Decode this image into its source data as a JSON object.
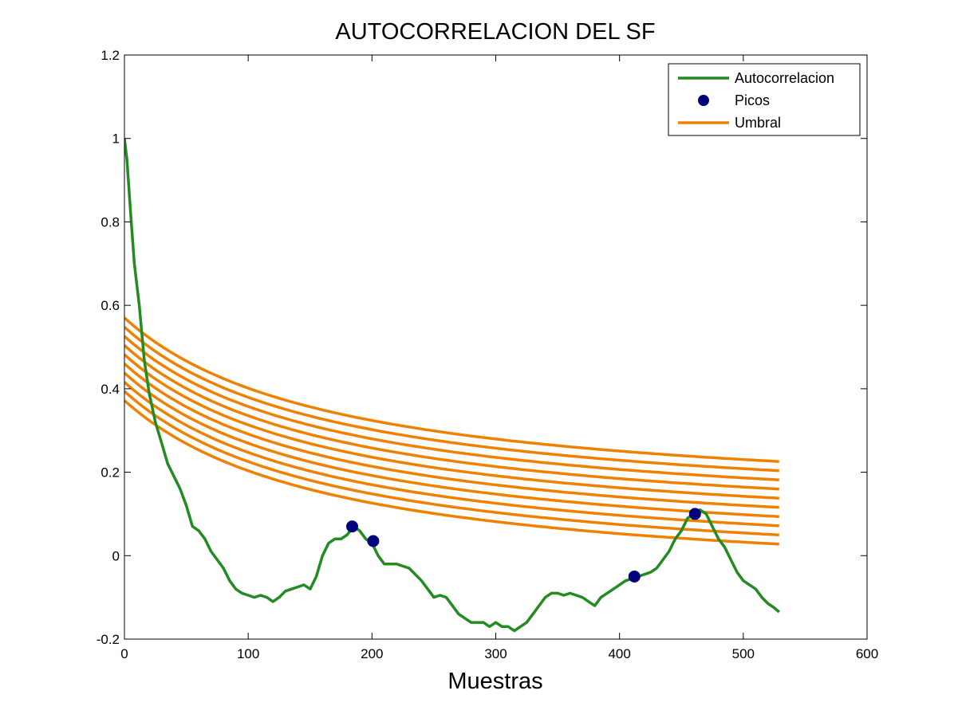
{
  "chart_data": {
    "type": "line",
    "title": "AUTOCORRELACION DEL SF",
    "xlabel": "Muestras",
    "ylabel": "",
    "xlim": [
      0,
      600
    ],
    "ylim": [
      -0.2,
      1.2
    ],
    "xticks": [
      0,
      100,
      200,
      300,
      400,
      500,
      600
    ],
    "yticks": [
      -0.2,
      0,
      0.2,
      0.4,
      0.6,
      0.8,
      1,
      1.2
    ],
    "xtick_labels": [
      "0",
      "100",
      "200",
      "300",
      "400",
      "500",
      "600"
    ],
    "ytick_labels": [
      "-0.2",
      "0",
      "0.2",
      "0.4",
      "0.6",
      "0.8",
      "1",
      "1.2"
    ],
    "grid": false,
    "legend_position": "top-right",
    "legend": [
      {
        "label": "Autocorrelacion",
        "kind": "line",
        "color": "#228B22"
      },
      {
        "label": "Picos",
        "kind": "marker",
        "color": "#00007F"
      },
      {
        "label": "Umbral",
        "kind": "line",
        "color": "#F08000"
      }
    ],
    "series": [
      {
        "name": "Autocorrelacion",
        "color": "#228B22",
        "x": [
          0,
          2,
          5,
          8,
          12,
          16,
          20,
          25,
          30,
          35,
          40,
          45,
          50,
          55,
          60,
          65,
          70,
          75,
          80,
          85,
          90,
          95,
          100,
          105,
          110,
          115,
          120,
          125,
          130,
          135,
          140,
          145,
          150,
          155,
          160,
          165,
          170,
          175,
          180,
          185,
          190,
          195,
          200,
          205,
          210,
          215,
          220,
          225,
          230,
          240,
          250,
          255,
          260,
          265,
          270,
          280,
          290,
          295,
          300,
          305,
          310,
          315,
          320,
          325,
          330,
          335,
          340,
          345,
          350,
          355,
          360,
          365,
          370,
          375,
          380,
          385,
          390,
          395,
          400,
          405,
          410,
          415,
          420,
          425,
          430,
          435,
          440,
          445,
          450,
          455,
          460,
          465,
          470,
          475,
          480,
          485,
          490,
          495,
          500,
          505,
          510,
          515,
          520,
          525,
          529
        ],
        "y": [
          1.0,
          0.95,
          0.82,
          0.7,
          0.6,
          0.47,
          0.39,
          0.32,
          0.27,
          0.22,
          0.19,
          0.16,
          0.12,
          0.07,
          0.06,
          0.04,
          0.01,
          -0.01,
          -0.03,
          -0.06,
          -0.08,
          -0.09,
          -0.095,
          -0.1,
          -0.095,
          -0.1,
          -0.11,
          -0.1,
          -0.085,
          -0.08,
          -0.075,
          -0.07,
          -0.08,
          -0.05,
          0.0,
          0.03,
          0.04,
          0.04,
          0.05,
          0.07,
          0.06,
          0.04,
          0.03,
          0.0,
          -0.02,
          -0.02,
          -0.02,
          -0.025,
          -0.03,
          -0.06,
          -0.1,
          -0.095,
          -0.1,
          -0.12,
          -0.14,
          -0.16,
          -0.16,
          -0.17,
          -0.16,
          -0.17,
          -0.17,
          -0.18,
          -0.17,
          -0.16,
          -0.14,
          -0.12,
          -0.1,
          -0.09,
          -0.09,
          -0.095,
          -0.09,
          -0.095,
          -0.1,
          -0.11,
          -0.12,
          -0.1,
          -0.09,
          -0.08,
          -0.07,
          -0.06,
          -0.055,
          -0.05,
          -0.045,
          -0.04,
          -0.03,
          -0.01,
          0.01,
          0.04,
          0.06,
          0.09,
          0.1,
          0.11,
          0.1,
          0.07,
          0.04,
          0.02,
          -0.01,
          -0.04,
          -0.06,
          -0.07,
          -0.08,
          -0.1,
          -0.115,
          -0.125,
          -0.135
        ]
      },
      {
        "name": "Picos",
        "color": "#00007F",
        "type": "scatter",
        "x": [
          184,
          201,
          412,
          461
        ],
        "y": [
          0.07,
          0.035,
          -0.05,
          0.1
        ]
      },
      {
        "name": "Umbral",
        "color": "#F08000",
        "form": "a/(1 + x/k) + b",
        "k": 170,
        "x_range": [
          0,
          529
        ],
        "curves": [
          {
            "a": 0.455,
            "b": 0.115
          },
          {
            "a": 0.455,
            "b": 0.093
          },
          {
            "a": 0.455,
            "b": 0.071
          },
          {
            "a": 0.455,
            "b": 0.049
          },
          {
            "a": 0.455,
            "b": 0.027
          },
          {
            "a": 0.455,
            "b": 0.005
          },
          {
            "a": 0.455,
            "b": -0.017
          },
          {
            "a": 0.455,
            "b": -0.039
          },
          {
            "a": 0.455,
            "b": -0.061
          },
          {
            "a": 0.455,
            "b": -0.083
          }
        ]
      }
    ]
  }
}
